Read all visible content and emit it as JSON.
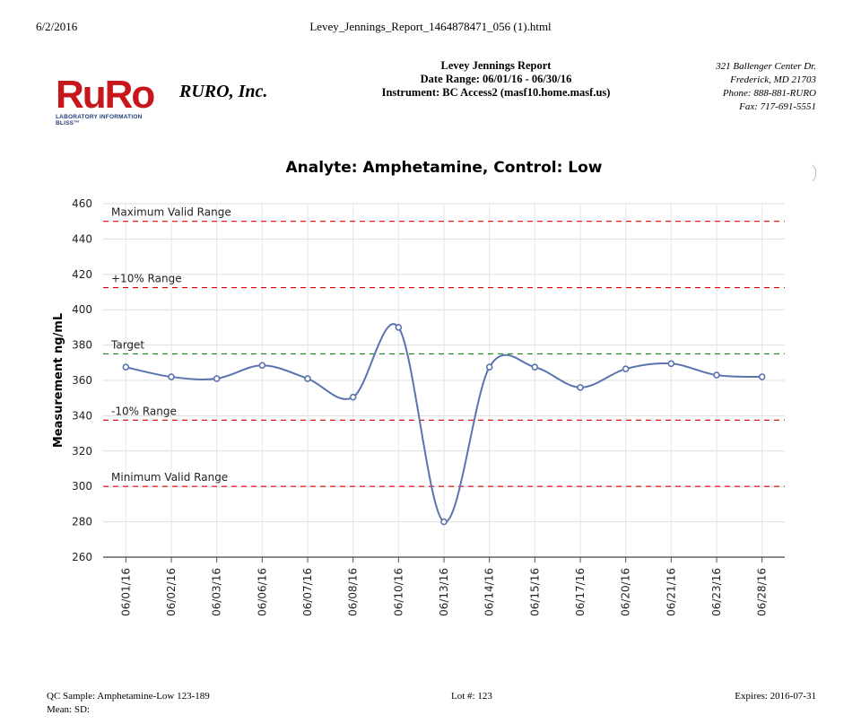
{
  "print_header": {
    "date": "6/2/2016",
    "filename": "Levey_Jennings_Report_1464878471_056 (1).html"
  },
  "logo": {
    "text": "RuRo",
    "tagline": "LABORATORY INFORMATION BLISS™"
  },
  "company": {
    "name": "RURO, Inc."
  },
  "report": {
    "title": "Levey Jennings Report",
    "date_range": "Date Range: 06/01/16 - 06/30/16",
    "instrument": "Instrument: BC Access2 (masf10.home.masf.us)"
  },
  "address": {
    "line1": "321 Ballenger Center Dr.",
    "line2": "Frederick, MD 21703",
    "phone": "Phone: 888-881-RURO",
    "fax": "Fax: 717-691-5551"
  },
  "colors": {
    "series": "#5b73ae",
    "limit": "#e00000",
    "target": "#1a8a1a",
    "grid": "#dddddd",
    "logo": "#c8161d"
  },
  "chart_data": {
    "type": "line",
    "title": "Analyte: Amphetamine, Control: Low",
    "ylabel": "Measurement ng/mL",
    "xlabel": "",
    "ylim": [
      260,
      460
    ],
    "yticks": [
      260,
      280,
      300,
      320,
      340,
      360,
      380,
      400,
      420,
      440,
      460
    ],
    "grid": true,
    "categories": [
      "06/01/16",
      "06/02/16",
      "06/03/16",
      "06/06/16",
      "06/07/16",
      "06/08/16",
      "06/10/16",
      "06/13/16",
      "06/14/16",
      "06/15/16",
      "06/17/16",
      "06/20/16",
      "06/21/16",
      "06/23/16",
      "06/28/16"
    ],
    "series": [
      {
        "values": [
          367.5,
          362,
          361,
          368.5,
          361,
          350.5,
          390,
          280,
          367.5,
          367.5,
          356,
          366.5,
          369.5,
          363,
          362
        ]
      }
    ],
    "reference_lines": [
      {
        "label": "Maximum Valid Range",
        "value": 450,
        "color": "#e00000"
      },
      {
        "label": "+10% Range",
        "value": 412.5,
        "color": "#e00000"
      },
      {
        "label": "Target",
        "value": 375,
        "color": "#1a8a1a"
      },
      {
        "label": "-10% Range",
        "value": 337.5,
        "color": "#e00000"
      },
      {
        "label": "Minimum Valid Range",
        "value": 300,
        "color": "#e00000"
      }
    ]
  },
  "footer": {
    "qc_sample": "QC Sample: Amphetamine-Low 123-189",
    "lot": "Lot #: 123",
    "expires": "Expires: 2016-07-31",
    "mean_sd": "Mean:   SD:"
  }
}
